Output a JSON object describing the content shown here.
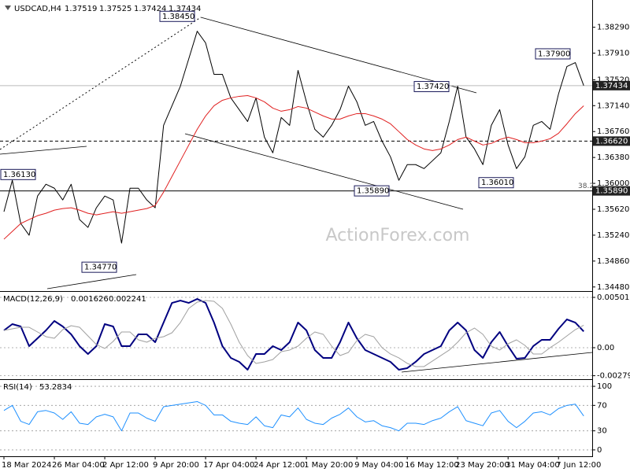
{
  "chart_data": [
    {
      "type": "line",
      "title": "USDCAD,H4",
      "ohlc": [
        1.37519,
        1.37525,
        1.37424,
        1.37434
      ],
      "ylim": [
        1.3442,
        1.3869
      ],
      "yticks": [
        {
          "value": 1.3829,
          "label": "1.38290"
        },
        {
          "value": 1.3791,
          "label": "1.37910"
        },
        {
          "value": 1.3752,
          "label": "1.37520"
        },
        {
          "value": 1.3714,
          "label": "1.37140"
        },
        {
          "value": 1.3676,
          "label": "1.36760"
        },
        {
          "value": 1.3638,
          "label": "1.36380"
        },
        {
          "value": 1.36,
          "label": "1.36000"
        },
        {
          "value": 1.3562,
          "label": "1.35620"
        },
        {
          "value": 1.3524,
          "label": "1.35240"
        },
        {
          "value": 1.3486,
          "label": "1.34860"
        },
        {
          "value": 1.3448,
          "label": "1.34480"
        }
      ],
      "series": [
        {
          "color": "#000000",
          "values": [
            1.35584,
            1.36045,
            1.35411,
            1.35239,
            1.35814,
            1.35987,
            1.35929,
            1.35757,
            1.35987,
            1.35469,
            1.35354,
            1.35642,
            1.35814,
            1.35757,
            1.35123,
            1.35929,
            1.35929,
            1.35757,
            1.35642,
            1.36851,
            1.37138,
            1.37426,
            1.37829,
            1.38232,
            1.3806,
            1.37599,
            1.37599,
            1.37254,
            1.37081,
            1.36908,
            1.37254,
            1.36678,
            1.36448,
            1.36966,
            1.36851,
            1.37657,
            1.37196,
            1.36793,
            1.36678,
            1.36851,
            1.37081,
            1.37426,
            1.37196,
            1.36851,
            1.36908,
            1.3662,
            1.3639,
            1.36045,
            1.36275,
            1.36275,
            1.36217,
            1.36332,
            1.36448,
            1.36908,
            1.37426,
            1.36678,
            1.36505,
            1.36275,
            1.36851,
            1.37081,
            1.36563,
            1.36217,
            1.3639,
            1.36851,
            1.36908,
            1.36793,
            1.37311,
            1.37714,
            1.37772,
            1.37434
          ]
        },
        {
          "color": "#e02020",
          "values": [
            1.35181,
            1.35296,
            1.35411,
            1.35469,
            1.35526,
            1.35561,
            1.35607,
            1.3563,
            1.35642,
            1.35607,
            1.35561,
            1.35538,
            1.35561,
            1.35584,
            1.35561,
            1.35584,
            1.35607,
            1.3563,
            1.35676,
            1.35872,
            1.36102,
            1.36332,
            1.36563,
            1.36793,
            1.36989,
            1.37138,
            1.37219,
            1.37254,
            1.37277,
            1.37288,
            1.37254,
            1.37196,
            1.37104,
            1.37058,
            1.37081,
            1.37127,
            1.37104,
            1.37046,
            1.36989,
            1.36943,
            1.36943,
            1.36989,
            1.37023,
            1.37023,
            1.36989,
            1.36943,
            1.36874,
            1.36759,
            1.36643,
            1.36563,
            1.36505,
            1.36482,
            1.36505,
            1.36563,
            1.36643,
            1.36678,
            1.3662,
            1.36563,
            1.36586,
            1.36643,
            1.36678,
            1.36643,
            1.36597,
            1.36597,
            1.3662,
            1.36655,
            1.36735,
            1.36874,
            1.37023,
            1.37138
          ]
        }
      ],
      "levels": [
        {
          "value": 1.3662,
          "label": "1.36620"
        },
        {
          "value": 1.3589,
          "label": "1.35890"
        },
        {
          "value": 1.37434,
          "label": "1.37434"
        }
      ],
      "annotations": [
        {
          "value": 1.3845,
          "label": "1.38450"
        },
        {
          "value": 1.379,
          "label": "1.37900"
        },
        {
          "value": 1.3742,
          "label": "1.37420"
        },
        {
          "value": 1.3613,
          "label": "1.36130"
        },
        {
          "value": 1.3589,
          "label": "1.35890"
        },
        {
          "value": 1.3601,
          "label": "1.36010"
        },
        {
          "value": 1.3477,
          "label": "1.34770"
        }
      ],
      "fib_label": "38.2",
      "watermark": "ActionForex.com"
    },
    {
      "type": "line",
      "title": "MACD(12,26,9)",
      "readings": [
        0.001626,
        0.002241
      ],
      "ylim": [
        -0.00314,
        0.00557
      ],
      "yticks": [
        0.005018,
        {
          "value": 0,
          "label": "0.00"
        },
        -0.002795
      ],
      "series": [
        {
          "color": "#000080",
          "values": [
            0.001725,
            0.002352,
            0.002117,
            0.000157,
            0.000941,
            0.001725,
            0.002666,
            0.002117,
            0.001333,
            0.000157,
            -0.000627,
            0.000157,
            0.002352,
            0.002117,
            0.000157,
            0.000157,
            0.001333,
            0.001333,
            0.000549,
            0.002509,
            0.004469,
            0.004704,
            0.004469,
            0.004861,
            0.004469,
            0.002509,
            0.000157,
            -0.001019,
            -0.001411,
            -0.002195,
            -0.000627,
            -0.000627,
            0.000157,
            -0.000235,
            0.000549,
            0.002509,
            0.001725,
            -0.000235,
            -0.001019,
            -0.001019,
            0.000549,
            0.002509,
            0.000941,
            -0.000235,
            -0.000627,
            -0.001019,
            -0.001411,
            -0.002195,
            -0.002038,
            -0.001411,
            -0.000627,
            -0.000235,
            0.000157,
            0.001725,
            0.002509,
            0.001725,
            -0.000235,
            -0.001019,
            0.000549,
            0.001568,
            0.000157,
            -0.001098,
            -0.001019,
            0.000157,
            0.000784,
            0.000784,
            0.001882,
            0.002822,
            0.002509,
            0.001626
          ]
        },
        {
          "color": "#a0a0a0",
          "values": [
            0.001725,
            0.001882,
            0.002038,
            0.002038,
            0.001568,
            0.001098,
            0.000941,
            0.001803,
            0.002195,
            0.002038,
            0.001176,
            0.000314,
            -7.8e-05,
            0.000627,
            0.001568,
            0.001568,
            0.000784,
            0.000549,
            0.000941,
            0.001098,
            0.00149,
            0.002509,
            0.00392,
            0.004547,
            0.004704,
            0.004626,
            0.00392,
            0.002352,
            0.000549,
            -0.000784,
            -0.001568,
            -0.001411,
            -0.001176,
            -0.000392,
            -0.000235,
            0.000157,
            0.000941,
            0.001568,
            0.001333,
            0.000157,
            -0.000784,
            -0.00047,
            0.000706,
            0.001333,
            0.001098,
            0,
            -0.000627,
            -0.001019,
            -0.001568,
            -0.001882,
            -0.001882,
            -0.001333,
            -0.000784,
            -0.000235,
            0.000549,
            0.00149,
            0.00196,
            0.001333,
            0.000157,
            -0.000235,
            0.000392,
            0.000784,
            0.000235,
            -0.000627,
            -0.000627,
            0,
            0.000549,
            0.001176,
            0.001803,
            0.002241
          ]
        }
      ]
    },
    {
      "type": "line",
      "title": "RSI(14)",
      "readings": [
        53.2834
      ],
      "ylim": [
        -10,
        110
      ],
      "yticks": [
        100,
        70,
        30,
        0
      ],
      "series": [
        {
          "color": "#1e90ff",
          "values": [
            62,
            70,
            45,
            40,
            60,
            62,
            58,
            48,
            60,
            42,
            40,
            52,
            56,
            52,
            30,
            58,
            58,
            50,
            45,
            68,
            70,
            72,
            74,
            76,
            70,
            55,
            55,
            45,
            42,
            40,
            52,
            38,
            35,
            55,
            52,
            66,
            48,
            42,
            40,
            50,
            56,
            66,
            52,
            44,
            46,
            38,
            35,
            30,
            42,
            42,
            40,
            46,
            50,
            60,
            68,
            46,
            42,
            38,
            58,
            62,
            45,
            35,
            45,
            58,
            60,
            55,
            65,
            70,
            72,
            53.2834
          ]
        }
      ],
      "categories": [
        "18 Mar 2024",
        null,
        null,
        null,
        null,
        null,
        "26 Mar 04:00",
        null,
        null,
        null,
        null,
        null,
        "2 Apr 12:00",
        null,
        null,
        null,
        null,
        null,
        "9 Apr 20:00",
        null,
        null,
        null,
        null,
        null,
        "17 Apr 04:00",
        null,
        null,
        null,
        null,
        null,
        "24 Apr 12:00",
        null,
        null,
        null,
        null,
        null,
        "1 May 20:00",
        null,
        null,
        null,
        null,
        null,
        "9 May 04:00",
        null,
        null,
        null,
        null,
        null,
        "16 May 12:00",
        null,
        null,
        null,
        null,
        null,
        "23 May 20:00",
        null,
        null,
        null,
        null,
        null,
        "31 May 04:00",
        null,
        null,
        null,
        null,
        null,
        "7 Jun 12:00",
        null,
        null,
        null
      ]
    }
  ]
}
